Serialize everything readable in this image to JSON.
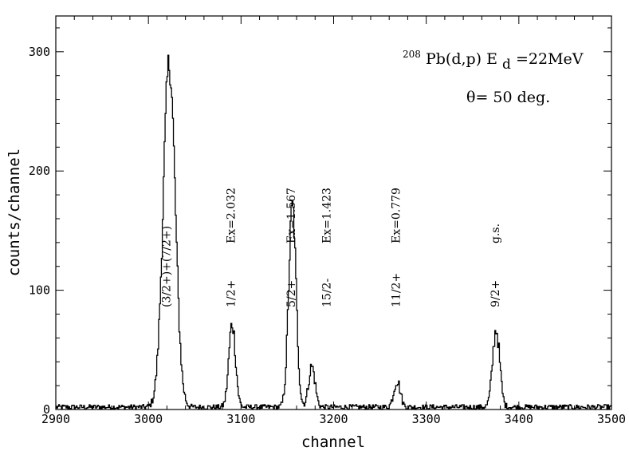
{
  "chart_data": {
    "type": "line",
    "xlabel": "channel",
    "ylabel": "counts/channel",
    "xlim": [
      2900,
      3500
    ],
    "ylim": [
      0,
      330
    ],
    "x_ticks": [
      2900,
      3000,
      3100,
      3200,
      3300,
      3400,
      3500
    ],
    "y_ticks": [
      0,
      100,
      200,
      300
    ],
    "title": {
      "mass_number": "208",
      "reaction": "Pb(d,p) E",
      "energy_subscript": "d",
      "energy_value": "=22MeV",
      "angle": "θ= 50 deg."
    },
    "baseline": 2,
    "peaks": [
      {
        "center": 3022,
        "height": 288,
        "sigma": 6.5
      },
      {
        "center": 3090,
        "height": 70,
        "sigma": 3.6
      },
      {
        "center": 3155,
        "height": 168,
        "sigma": 4.0
      },
      {
        "center": 3176,
        "height": 34,
        "sigma": 3.5
      },
      {
        "center": 3268,
        "height": 22,
        "sigma": 3.5
      },
      {
        "center": 3375,
        "height": 65,
        "sigma": 3.8
      }
    ],
    "annotations": [
      {
        "lines": [
          "(3/2+)+(7/2+)"
        ],
        "x": 3020
      },
      {
        "lines": [
          "1/2+",
          "Ex=2.032"
        ],
        "x": 3090
      },
      {
        "lines": [
          "5/2+",
          "Ex=1.567"
        ],
        "x": 3155
      },
      {
        "lines": [
          "15/2-",
          "Ex=1.423"
        ],
        "x": 3193
      },
      {
        "lines": [
          "11/2+",
          "Ex=0.779"
        ],
        "x": 3268
      },
      {
        "lines": [
          "9/2+",
          "g.s."
        ],
        "x": 3375
      }
    ]
  }
}
